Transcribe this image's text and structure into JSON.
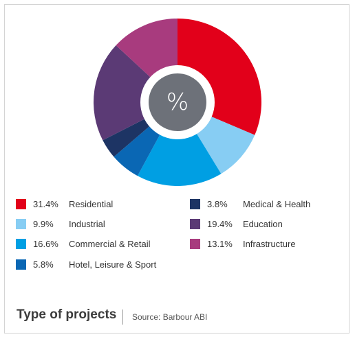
{
  "chart_data": {
    "type": "pie",
    "variant": "donut",
    "center_label": "%",
    "title": "Type of projects",
    "source": "Source: Barbour ABI",
    "legend_placement": "bottom",
    "slices": [
      {
        "label": "Residential",
        "value": 31.4,
        "value_label": "31.4%",
        "color": "#e2001a"
      },
      {
        "label": "Industrial",
        "value": 9.9,
        "value_label": "9.9%",
        "color": "#87cdf3"
      },
      {
        "label": "Commercial & Retail",
        "value": 16.6,
        "value_label": "16.6%",
        "color": "#009fe3"
      },
      {
        "label": "Hotel, Leisure & Sport",
        "value": 5.8,
        "value_label": "5.8%",
        "color": "#0a67b4"
      },
      {
        "label": "Medical & Health",
        "value": 3.8,
        "value_label": "3.8%",
        "color": "#1d3464"
      },
      {
        "label": "Education",
        "value": 19.4,
        "value_label": "19.4%",
        "color": "#5b3a75"
      },
      {
        "label": "Infrastructure",
        "value": 13.1,
        "value_label": "13.1%",
        "color": "#a83b7e"
      }
    ]
  },
  "colors": {
    "ring_background": "#ffffff",
    "center_circle": "#6d7179",
    "center_text": "#ffffff"
  }
}
